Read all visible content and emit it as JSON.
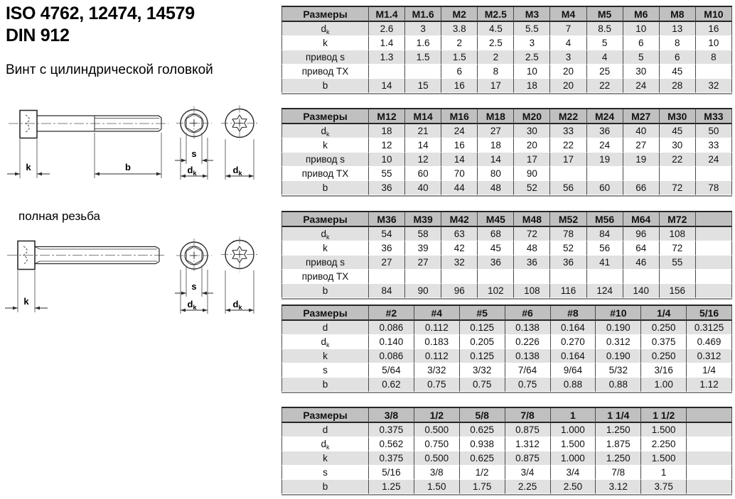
{
  "header": {
    "title_line1": "ISO 4762, 12474, 14579",
    "title_line2": "DIN 912",
    "subtitle": "Винт с цилиндрической головкой",
    "full_thread_label": "полная резьба"
  },
  "colors": {
    "header_bg": "#c0c0c0",
    "row_alt_bg": "#e1e1e1"
  },
  "drawing_labels": {
    "k": "k",
    "b": "b",
    "s": "s",
    "d": "d",
    "k_sub": "k"
  },
  "tables": [
    {
      "header": [
        "Размеры",
        "M1.4",
        "M1.6",
        "M2",
        "M2.5",
        "M3",
        "M4",
        "M5",
        "M6",
        "M8",
        "M10"
      ],
      "rows": [
        {
          "label": "d",
          "sub": "k",
          "values": [
            "2.6",
            "3",
            "3.8",
            "4.5",
            "5.5",
            "7",
            "8.5",
            "10",
            "13",
            "16"
          ]
        },
        {
          "label": "k",
          "values": [
            "1.4",
            "1.6",
            "2",
            "2.5",
            "3",
            "4",
            "5",
            "6",
            "8",
            "10"
          ]
        },
        {
          "label": "привод s",
          "values": [
            "1.3",
            "1.5",
            "1.5",
            "2",
            "2.5",
            "3",
            "4",
            "5",
            "6",
            "8"
          ]
        },
        {
          "label": "привод TX",
          "values": [
            "",
            "",
            "6",
            "8",
            "10",
            "20",
            "25",
            "30",
            "45",
            ""
          ]
        },
        {
          "label": "b",
          "values": [
            "14",
            "15",
            "16",
            "17",
            "18",
            "20",
            "22",
            "24",
            "28",
            "32"
          ]
        }
      ]
    },
    {
      "header": [
        "Размеры",
        "M12",
        "M14",
        "M16",
        "M18",
        "M20",
        "M22",
        "M24",
        "M27",
        "M30",
        "M33"
      ],
      "rows": [
        {
          "label": "d",
          "sub": "k",
          "values": [
            "18",
            "21",
            "24",
            "27",
            "30",
            "33",
            "36",
            "40",
            "45",
            "50"
          ]
        },
        {
          "label": "k",
          "values": [
            "12",
            "14",
            "16",
            "18",
            "20",
            "22",
            "24",
            "27",
            "30",
            "33"
          ]
        },
        {
          "label": "привод s",
          "values": [
            "10",
            "12",
            "14",
            "14",
            "17",
            "17",
            "19",
            "19",
            "22",
            "24"
          ]
        },
        {
          "label": "привод TX",
          "values": [
            "55",
            "60",
            "70",
            "80",
            "90",
            "",
            "",
            "",
            "",
            ""
          ]
        },
        {
          "label": "b",
          "values": [
            "36",
            "40",
            "44",
            "48",
            "52",
            "56",
            "60",
            "66",
            "72",
            "78"
          ]
        }
      ]
    },
    {
      "header": [
        "Размеры",
        "M36",
        "M39",
        "M42",
        "M45",
        "M48",
        "M52",
        "M56",
        "M64",
        "M72",
        ""
      ],
      "rows": [
        {
          "label": "d",
          "sub": "k",
          "values": [
            "54",
            "58",
            "63",
            "68",
            "72",
            "78",
            "84",
            "96",
            "108",
            ""
          ]
        },
        {
          "label": "k",
          "values": [
            "36",
            "39",
            "42",
            "45",
            "48",
            "52",
            "56",
            "64",
            "72",
            ""
          ]
        },
        {
          "label": "привод s",
          "values": [
            "27",
            "27",
            "32",
            "36",
            "36",
            "36",
            "41",
            "46",
            "55",
            ""
          ]
        },
        {
          "label": "привод TX",
          "values": [
            "",
            "",
            "",
            "",
            "",
            "",
            "",
            "",
            "",
            ""
          ]
        },
        {
          "label": "b",
          "values": [
            "84",
            "90",
            "96",
            "102",
            "108",
            "116",
            "124",
            "140",
            "156",
            ""
          ]
        }
      ]
    },
    {
      "header": [
        "Размеры",
        "#2",
        "#4",
        "#5",
        "#6",
        "#8",
        "#10",
        "1/4",
        "5/16"
      ],
      "rows": [
        {
          "label": "d",
          "values": [
            "0.086",
            "0.112",
            "0.125",
            "0.138",
            "0.164",
            "0.190",
            "0.250",
            "0.3125"
          ]
        },
        {
          "label": "d",
          "sub": "k",
          "values": [
            "0.140",
            "0.183",
            "0.205",
            "0.226",
            "0.270",
            "0.312",
            "0.375",
            "0.469"
          ]
        },
        {
          "label": "k",
          "values": [
            "0.086",
            "0.112",
            "0.125",
            "0.138",
            "0.164",
            "0.190",
            "0.250",
            "0.312"
          ]
        },
        {
          "label": "s",
          "values": [
            "5/64",
            "3/32",
            "3/32",
            "7/64",
            "9/64",
            "5/32",
            "3/16",
            "1/4"
          ]
        },
        {
          "label": "b",
          "values": [
            "0.62",
            "0.75",
            "0.75",
            "0.75",
            "0.88",
            "0.88",
            "1.00",
            "1.12"
          ]
        }
      ]
    },
    {
      "header": [
        "Размеры",
        "3/8",
        "1/2",
        "5/8",
        "7/8",
        "1",
        "1 1/4",
        "1 1/2",
        ""
      ],
      "rows": [
        {
          "label": "d",
          "values": [
            "0.375",
            "0.500",
            "0.625",
            "0.875",
            "1.000",
            "1.250",
            "1.500",
            ""
          ]
        },
        {
          "label": "d",
          "sub": "k",
          "values": [
            "0.562",
            "0.750",
            "0.938",
            "1.312",
            "1.500",
            "1.875",
            "2.250",
            ""
          ]
        },
        {
          "label": "k",
          "values": [
            "0.375",
            "0.500",
            "0.625",
            "0.875",
            "1.000",
            "1.250",
            "1.500",
            ""
          ]
        },
        {
          "label": "s",
          "values": [
            "5/16",
            "3/8",
            "1/2",
            "3/4",
            "3/4",
            "7/8",
            "1",
            ""
          ]
        },
        {
          "label": "b",
          "values": [
            "1.25",
            "1.50",
            "1.75",
            "2.25",
            "2.50",
            "3.12",
            "3.75",
            ""
          ]
        }
      ]
    }
  ]
}
